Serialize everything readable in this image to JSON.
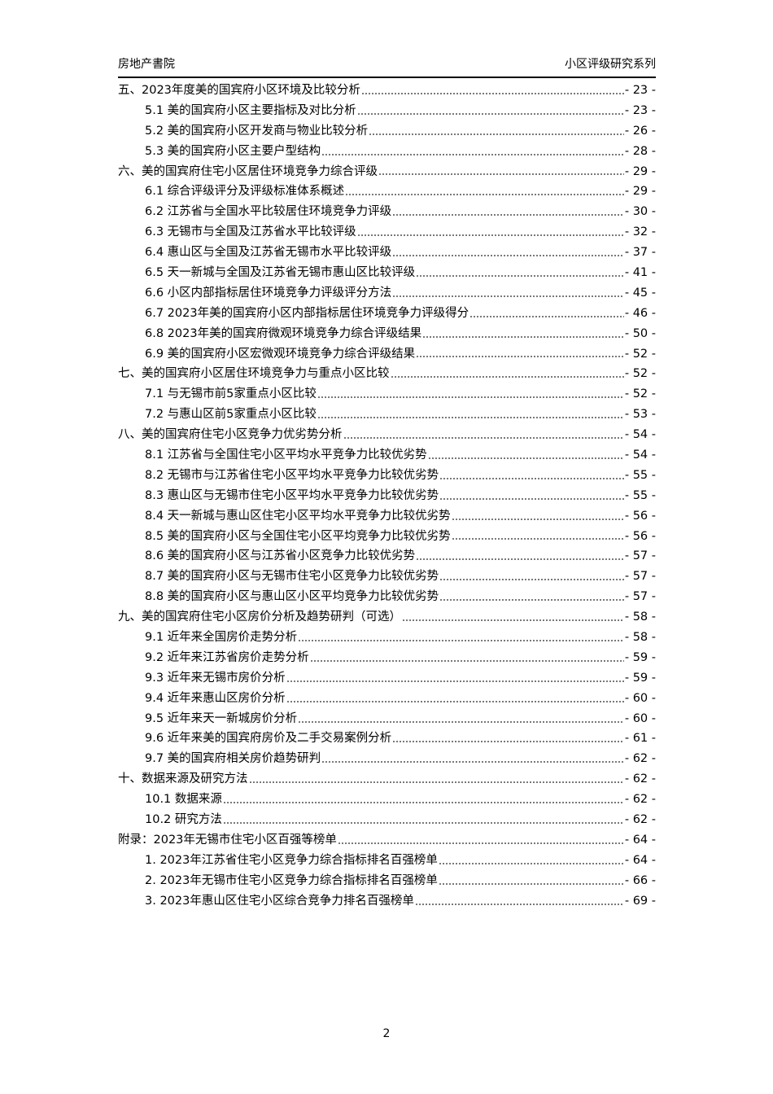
{
  "header": {
    "left": "房地产書院",
    "right": "小区评级研究系列"
  },
  "toc": [
    {
      "level": 1,
      "title": "五、2023年度美的国宾府小区环境及比较分析",
      "page": "- 23 -"
    },
    {
      "level": 2,
      "title": "5.1 美的国宾府小区主要指标及对比分析",
      "page": "- 23 -"
    },
    {
      "level": 2,
      "title": "5.2 美的国宾府小区开发商与物业比较分析",
      "page": "- 26 -"
    },
    {
      "level": 2,
      "title": "5.3 美的国宾府小区主要户型结构",
      "page": "- 28 -"
    },
    {
      "level": 1,
      "title": "六、美的国宾府住宅小区居住环境竞争力综合评级",
      "page": "- 29 -"
    },
    {
      "level": 2,
      "title": "6.1 综合评级评分及评级标准体系概述",
      "page": "- 29 -"
    },
    {
      "level": 2,
      "title": "6.2 江苏省与全国水平比较居住环境竞争力评级",
      "page": "- 30 -"
    },
    {
      "level": 2,
      "title": "6.3 无锡市与全国及江苏省水平比较评级",
      "page": "- 32 -"
    },
    {
      "level": 2,
      "title": "6.4 惠山区与全国及江苏省无锡市水平比较评级",
      "page": "- 37 -"
    },
    {
      "level": 2,
      "title": "6.5 天一新城与全国及江苏省无锡市惠山区比较评级",
      "page": "- 41 -"
    },
    {
      "level": 2,
      "title": "6.6 小区内部指标居住环境竞争力评级评分方法",
      "page": "- 45 -"
    },
    {
      "level": 2,
      "title": "6.7 2023年美的国宾府小区内部指标居住环境竞争力评级得分",
      "page": "- 46 -"
    },
    {
      "level": 2,
      "title": "6.8 2023年美的国宾府微观环境竞争力综合评级结果",
      "page": "- 50 -"
    },
    {
      "level": 2,
      "title": "6.9 美的国宾府小区宏微观环境竞争力综合评级结果",
      "page": "- 52 -"
    },
    {
      "level": 1,
      "title": "七、美的国宾府小区居住环境竞争力与重点小区比较",
      "page": "- 52 -"
    },
    {
      "level": 2,
      "title": "7.1 与无锡市前5家重点小区比较",
      "page": "- 52 -"
    },
    {
      "level": 2,
      "title": "7.2 与惠山区前5家重点小区比较",
      "page": "- 53 -"
    },
    {
      "level": 1,
      "title": "八、美的国宾府住宅小区竞争力优劣势分析",
      "page": "- 54 -"
    },
    {
      "level": 2,
      "title": "8.1 江苏省与全国住宅小区平均水平竞争力比较优劣势",
      "page": "- 54 -"
    },
    {
      "level": 2,
      "title": "8.2 无锡市与江苏省住宅小区平均水平竞争力比较优劣势",
      "page": "- 55 -"
    },
    {
      "level": 2,
      "title": "8.3 惠山区与无锡市住宅小区平均水平竞争力比较优劣势",
      "page": "- 55 -"
    },
    {
      "level": 2,
      "title": "8.4 天一新城与惠山区住宅小区平均水平竞争力比较优劣势",
      "page": "- 56 -"
    },
    {
      "level": 2,
      "title": "8.5 美的国宾府小区与全国住宅小区平均竞争力比较优劣势",
      "page": "- 56 -"
    },
    {
      "level": 2,
      "title": "8.6 美的国宾府小区与江苏省小区竞争力比较优劣势",
      "page": "- 57 -"
    },
    {
      "level": 2,
      "title": "8.7 美的国宾府小区与无锡市住宅小区竞争力比较优劣势",
      "page": "- 57 -"
    },
    {
      "level": 2,
      "title": "8.8 美的国宾府小区与惠山区小区平均竞争力比较优劣势",
      "page": "- 57 -"
    },
    {
      "level": 1,
      "title": "九、美的国宾府住宅小区房价分析及趋势研判（可选）",
      "page": "- 58 -"
    },
    {
      "level": 2,
      "title": "9.1 近年来全国房价走势分析",
      "page": "- 58 -"
    },
    {
      "level": 2,
      "title": "9.2 近年来江苏省房价走势分析",
      "page": "- 59 -"
    },
    {
      "level": 2,
      "title": "9.3 近年来无锡市房价分析",
      "page": "- 59 -"
    },
    {
      "level": 2,
      "title": "9.4 近年来惠山区房价分析",
      "page": "- 60 -"
    },
    {
      "level": 2,
      "title": "9.5 近年来天一新城房价分析",
      "page": "- 60 -"
    },
    {
      "level": 2,
      "title": "9.6 近年来美的国宾府房价及二手交易案例分析",
      "page": "- 61 -"
    },
    {
      "level": 2,
      "title": "9.7 美的国宾府相关房价趋势研判",
      "page": "- 62 -"
    },
    {
      "level": 1,
      "title": "十、数据来源及研究方法",
      "page": "- 62 -"
    },
    {
      "level": 2,
      "title": "10.1 数据来源",
      "page": "- 62 -"
    },
    {
      "level": 2,
      "title": "10.2 研究方法",
      "page": "- 62 -"
    },
    {
      "level": 1,
      "title": "附录：2023年无锡市住宅小区百强等榜单",
      "page": "- 64 -"
    },
    {
      "level": 2,
      "title": "1. 2023年江苏省住宅小区竞争力综合指标排名百强榜单",
      "page": "- 64 -"
    },
    {
      "level": 2,
      "title": "2. 2023年无锡市住宅小区竞争力综合指标排名百强榜单",
      "page": "- 66 -"
    },
    {
      "level": 2,
      "title": "3. 2023年惠山区住宅小区综合竞争力排名百强榜单",
      "page": "- 69 -"
    }
  ],
  "footer": {
    "page_number": "2"
  }
}
